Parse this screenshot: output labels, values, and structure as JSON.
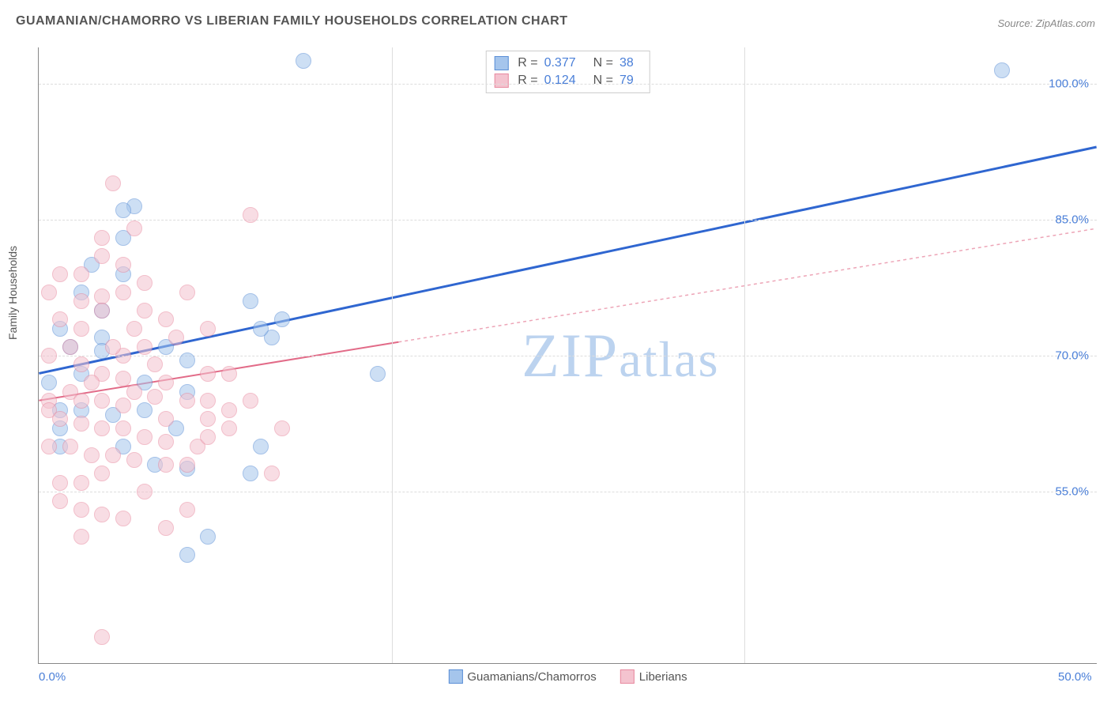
{
  "title": "GUAMANIAN/CHAMORRO VS LIBERIAN FAMILY HOUSEHOLDS CORRELATION CHART",
  "source": "Source: ZipAtlas.com",
  "ylabel": "Family Households",
  "watermark": "ZIPatlas",
  "chart": {
    "type": "scatter",
    "background_color": "#ffffff",
    "grid_color": "#dddddd",
    "axis_color": "#888888",
    "text_color": "#555555",
    "tick_label_color": "#4a7fd8",
    "title_fontsize": 16,
    "label_fontsize": 14,
    "tick_fontsize": 15,
    "xlim": [
      0,
      50
    ],
    "ylim": [
      36,
      104
    ],
    "yticks": [
      55,
      70,
      85,
      100
    ],
    "ytick_labels": [
      "55.0%",
      "70.0%",
      "85.0%",
      "100.0%"
    ],
    "xticks": [
      0,
      50
    ],
    "xtick_labels": [
      "0.0%",
      "50.0%"
    ],
    "vgrid_x": [
      16.67,
      33.33
    ],
    "marker_radius": 10,
    "marker_opacity": 0.55,
    "series": [
      {
        "name": "Guamanians/Chamorros",
        "marker_fill": "#a5c5ec",
        "marker_stroke": "#5b8fd6",
        "line_color": "#2f66d0",
        "line_width": 3,
        "line_dash": "none",
        "R": "0.377",
        "N": "38",
        "trend": {
          "x1": 0,
          "y1": 68,
          "x2": 50,
          "y2": 93,
          "solid_end_x": 50
        },
        "points": [
          [
            12.5,
            102.5
          ],
          [
            45.5,
            101.5
          ],
          [
            4.5,
            86.5
          ],
          [
            4,
            86
          ],
          [
            10,
            76
          ],
          [
            11,
            72
          ],
          [
            3,
            72
          ],
          [
            1.5,
            71
          ],
          [
            3,
            70.5
          ],
          [
            6,
            71
          ],
          [
            7,
            69.5
          ],
          [
            5,
            67
          ],
          [
            7,
            66
          ],
          [
            5,
            64
          ],
          [
            6.5,
            62
          ],
          [
            3.5,
            63.5
          ],
          [
            2,
            64
          ],
          [
            1,
            64
          ],
          [
            1,
            62
          ],
          [
            4,
            60
          ],
          [
            5.5,
            58
          ],
          [
            7,
            57.5
          ],
          [
            8,
            50
          ],
          [
            7,
            48
          ],
          [
            4,
            79
          ],
          [
            2,
            77
          ],
          [
            3,
            75
          ],
          [
            1,
            73
          ],
          [
            2,
            68
          ],
          [
            0.5,
            67
          ],
          [
            1,
            60
          ],
          [
            10.5,
            73
          ],
          [
            11.5,
            74
          ],
          [
            10,
            57
          ],
          [
            10.5,
            60
          ],
          [
            16,
            68
          ],
          [
            4,
            83
          ],
          [
            2.5,
            80
          ]
        ]
      },
      {
        "name": "Liberians",
        "marker_fill": "#f4c3cf",
        "marker_stroke": "#e88aa0",
        "line_color": "#e26b88",
        "line_width": 2,
        "line_dash": "4,4",
        "R": "0.124",
        "N": "79",
        "trend": {
          "x1": 0,
          "y1": 65,
          "x2": 50,
          "y2": 84,
          "solid_end_x": 17
        },
        "points": [
          [
            3.5,
            89
          ],
          [
            4.5,
            84
          ],
          [
            3,
            83
          ],
          [
            10,
            85.5
          ],
          [
            4,
            80
          ],
          [
            2,
            79
          ],
          [
            1,
            79
          ],
          [
            0.5,
            77
          ],
          [
            2,
            76
          ],
          [
            3,
            76.5
          ],
          [
            4,
            77
          ],
          [
            3,
            75
          ],
          [
            5,
            75
          ],
          [
            1,
            74
          ],
          [
            2,
            73
          ],
          [
            1.5,
            71
          ],
          [
            0.5,
            70
          ],
          [
            2,
            69
          ],
          [
            3,
            68
          ],
          [
            4,
            67.5
          ],
          [
            1.5,
            66
          ],
          [
            0.5,
            65
          ],
          [
            2,
            65
          ],
          [
            3,
            65
          ],
          [
            4,
            64.5
          ],
          [
            0.5,
            64
          ],
          [
            1,
            63
          ],
          [
            2,
            62.5
          ],
          [
            3,
            62
          ],
          [
            4,
            62
          ],
          [
            5,
            61
          ],
          [
            6,
            60.5
          ],
          [
            0.5,
            60
          ],
          [
            1.5,
            60
          ],
          [
            2.5,
            59
          ],
          [
            3.5,
            59
          ],
          [
            4.5,
            58.5
          ],
          [
            6,
            58
          ],
          [
            7,
            58
          ],
          [
            7.5,
            60
          ],
          [
            3,
            57
          ],
          [
            2,
            56
          ],
          [
            5,
            55
          ],
          [
            1,
            54
          ],
          [
            2,
            53
          ],
          [
            3,
            52.5
          ],
          [
            4,
            52
          ],
          [
            6,
            51
          ],
          [
            7,
            53
          ],
          [
            8,
            61
          ],
          [
            8,
            63
          ],
          [
            8,
            65
          ],
          [
            8,
            68
          ],
          [
            9,
            64
          ],
          [
            9,
            62
          ],
          [
            11,
            57
          ],
          [
            11.5,
            62
          ],
          [
            5.5,
            69
          ],
          [
            6,
            67
          ],
          [
            6.5,
            72
          ],
          [
            6,
            74
          ],
          [
            5,
            78
          ],
          [
            3,
            81
          ],
          [
            7,
            77
          ],
          [
            8,
            73
          ],
          [
            9,
            68
          ],
          [
            10,
            65
          ],
          [
            4,
            70
          ],
          [
            5,
            71
          ],
          [
            4.5,
            73
          ],
          [
            3.5,
            71
          ],
          [
            2.5,
            67
          ],
          [
            1,
            56
          ],
          [
            2,
            50
          ],
          [
            3,
            39
          ],
          [
            6,
            63
          ],
          [
            7,
            65
          ],
          [
            5.5,
            65.5
          ],
          [
            4.5,
            66
          ]
        ]
      }
    ],
    "legend": {
      "stats_box": true,
      "bottom_labels": [
        "Guamanians/Chamorros",
        "Liberians"
      ]
    }
  }
}
